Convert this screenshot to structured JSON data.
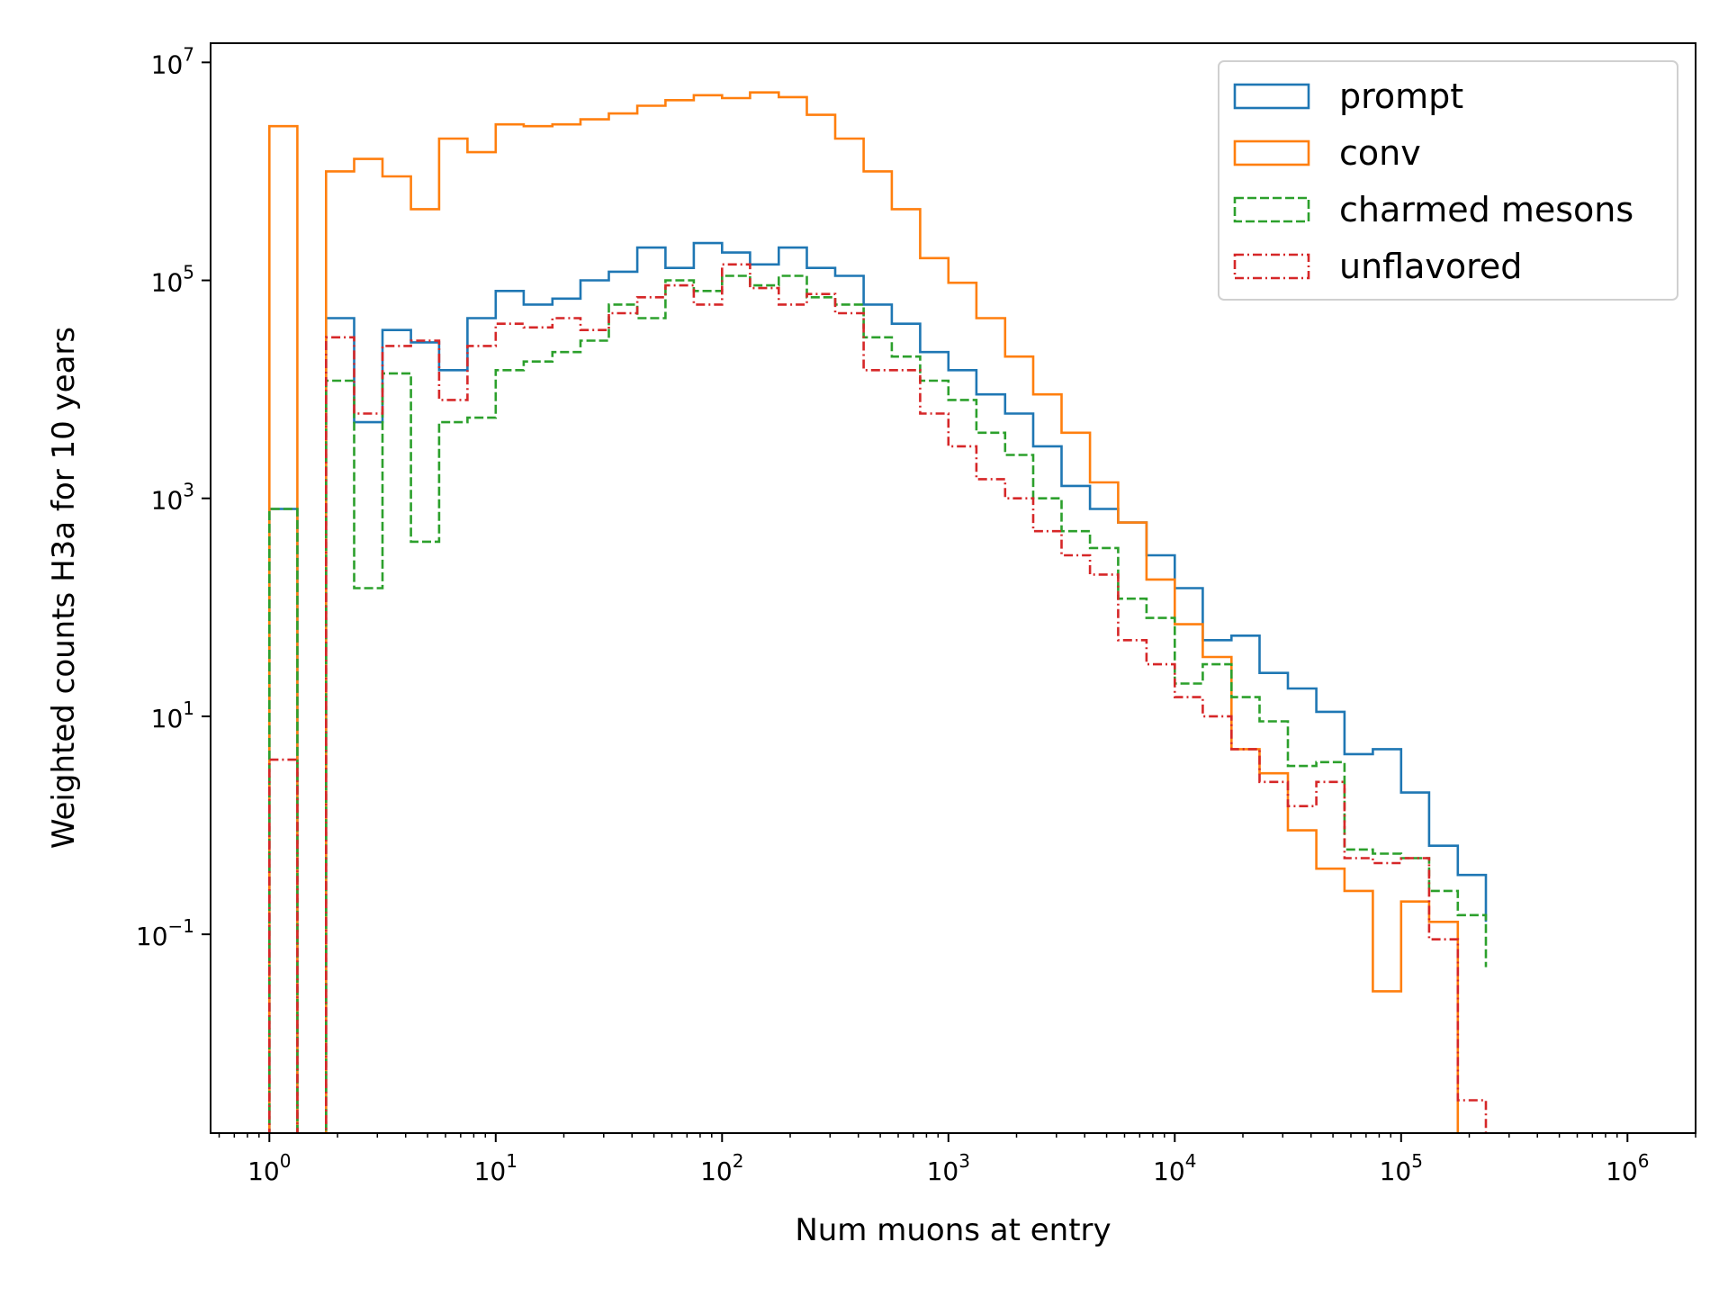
{
  "chart_data": {
    "type": "histogram-step",
    "xlabel": "Num muons at entry",
    "ylabel": "Weighted counts H3a for 10 years",
    "x_scale": "log",
    "y_scale": "log",
    "xlim": [
      0.55,
      2000000
    ],
    "ylim": [
      0.0015,
      15000000
    ],
    "x_ticks": [
      {
        "base": "10",
        "exp": "0"
      },
      {
        "base": "10",
        "exp": "1"
      },
      {
        "base": "10",
        "exp": "2"
      },
      {
        "base": "10",
        "exp": "3"
      },
      {
        "base": "10",
        "exp": "4"
      },
      {
        "base": "10",
        "exp": "5"
      },
      {
        "base": "10",
        "exp": "6"
      }
    ],
    "y_ticks": [
      {
        "base": "10",
        "exp": "−1"
      },
      {
        "base": "10",
        "exp": "1"
      },
      {
        "base": "10",
        "exp": "3"
      },
      {
        "base": "10",
        "exp": "5"
      },
      {
        "base": "10",
        "exp": "7"
      }
    ],
    "grid": false,
    "legend_position": "top-right",
    "bin_edges": [
      1.0,
      1.33,
      1.78,
      2.37,
      3.16,
      4.22,
      5.62,
      7.5,
      10.0,
      13.3,
      17.8,
      23.7,
      31.6,
      42.2,
      56.2,
      75.0,
      100,
      133,
      178,
      237,
      316,
      422,
      562,
      750,
      1000,
      1330,
      1780,
      2370,
      3160,
      4220,
      5620,
      7500,
      10000,
      13300,
      17800,
      23700,
      31600,
      42200,
      56200,
      75000,
      100000,
      133000,
      178000,
      237000
    ],
    "series": [
      {
        "name": "prompt",
        "color": "#1f77b4",
        "dash": "solid",
        "values": [
          800,
          0,
          45000,
          5000,
          35000,
          27000,
          15000,
          45000,
          80000,
          60000,
          68000,
          100000,
          120000,
          200000,
          130000,
          220000,
          180000,
          140000,
          200000,
          130000,
          110000,
          60000,
          40000,
          22000,
          15000,
          9000,
          6000,
          3000,
          1300,
          800,
          600,
          300,
          150,
          50,
          55,
          25,
          18,
          11,
          4.5,
          5,
          2,
          0.65,
          0.35,
          0.13
        ]
      },
      {
        "name": "conv",
        "color": "#ff7f0e",
        "dash": "solid",
        "values": [
          2600000,
          0,
          1000000,
          1300000,
          900000,
          450000,
          2000000,
          1500000,
          2700000,
          2600000,
          2700000,
          3000000,
          3400000,
          4000000,
          4500000,
          5000000,
          4700000,
          5300000,
          4800000,
          3300000,
          2000000,
          1000000,
          450000,
          160000,
          95000,
          45000,
          20000,
          9000,
          4000,
          1400,
          600,
          180,
          70,
          35,
          5,
          3,
          0.9,
          0.4,
          0.25,
          0.03,
          0.2,
          0.13,
          0.001,
          0.001
        ]
      },
      {
        "name": "charmed mesons",
        "color": "#2ca02c",
        "dash": "dashed",
        "values": [
          800,
          0,
          12000,
          150,
          14000,
          400,
          5000,
          5500,
          15000,
          18000,
          22000,
          28000,
          60000,
          45000,
          100000,
          80000,
          110000,
          90000,
          110000,
          70000,
          60000,
          30000,
          20000,
          12000,
          8000,
          4000,
          2500,
          1000,
          500,
          350,
          120,
          80,
          20,
          30,
          15,
          9,
          3.5,
          3.8,
          0.6,
          0.55,
          0.5,
          0.25,
          0.15,
          0.05
        ]
      },
      {
        "name": "unflavored",
        "color": "#d62728",
        "dash": "dashdot",
        "values": [
          4,
          0,
          30000,
          6000,
          25000,
          28000,
          8000,
          25000,
          40000,
          37000,
          45000,
          35000,
          50000,
          70000,
          90000,
          60000,
          140000,
          85000,
          60000,
          75000,
          50000,
          15000,
          15000,
          6000,
          3000,
          1500,
          1000,
          500,
          300,
          200,
          50,
          30,
          15,
          10,
          5,
          2.5,
          1.5,
          2.5,
          0.5,
          0.45,
          0.5,
          0.09,
          0.003,
          0.0003
        ]
      }
    ]
  }
}
